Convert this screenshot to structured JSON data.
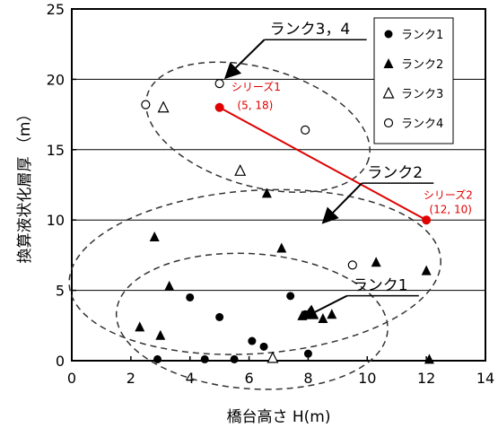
{
  "chart_data": {
    "type": "scatter",
    "xlabel": "橋台高さ H(m)",
    "ylabel": "換算液状化層厚 （m）",
    "xlim": [
      0,
      14
    ],
    "ylim": [
      0,
      25
    ],
    "xticks": [
      "0",
      "2",
      "4",
      "6",
      "8",
      "10",
      "12",
      "14"
    ],
    "yticks": [
      "0",
      "5",
      "10",
      "15",
      "20",
      "25"
    ],
    "grid": "horizontal",
    "legend_position": "top-right",
    "series": [
      {
        "name": "ランク1",
        "marker": "filled-circle",
        "points": [
          [
            2.9,
            0.1
          ],
          [
            4.0,
            4.5
          ],
          [
            4.5,
            0.1
          ],
          [
            5.0,
            3.1
          ],
          [
            5.5,
            0.1
          ],
          [
            6.1,
            1.4
          ],
          [
            6.5,
            1.0
          ],
          [
            7.4,
            4.6
          ],
          [
            7.9,
            3.3
          ],
          [
            8.0,
            0.5
          ]
        ]
      },
      {
        "name": "ランク2",
        "marker": "filled-triangle",
        "points": [
          [
            2.3,
            2.4
          ],
          [
            2.8,
            8.8
          ],
          [
            3.0,
            1.8
          ],
          [
            3.3,
            5.3
          ],
          [
            6.6,
            11.9
          ],
          [
            7.1,
            8.0
          ],
          [
            7.8,
            3.2
          ],
          [
            8.5,
            3.0
          ],
          [
            8.8,
            3.3
          ],
          [
            10.3,
            7.0
          ],
          [
            12.0,
            6.4
          ],
          [
            12.1,
            0.1
          ]
        ]
      },
      {
        "name": "ランク3",
        "marker": "open-triangle",
        "points": [
          [
            3.1,
            18.0
          ],
          [
            5.7,
            13.5
          ],
          [
            6.8,
            0.2
          ]
        ]
      },
      {
        "name": "ランク4",
        "marker": "open-circle",
        "points": [
          [
            2.5,
            18.2
          ],
          [
            5.0,
            19.7
          ],
          [
            7.9,
            16.4
          ],
          [
            9.5,
            6.8
          ]
        ]
      },
      {
        "name": "シリーズ2",
        "marker": "red-line",
        "points": [
          [
            5,
            18
          ],
          [
            12,
            10
          ]
        ]
      }
    ],
    "annotations": [
      {
        "text": "ランク3，4",
        "x": 6.7,
        "y": 23.2,
        "arrow_to": [
          5.2,
          20.1
        ]
      },
      {
        "text": "ランク2",
        "x": 10.0,
        "y": 13.0,
        "arrow_to": [
          8.5,
          9.8
        ]
      },
      {
        "text": "ランク1",
        "x": 9.5,
        "y": 5.0,
        "arrow_to": [
          7.8,
          3.0
        ]
      },
      {
        "text": "シリーズ1",
        "x": 5.4,
        "y": 19.2,
        "color": "#e00000"
      },
      {
        "text": "(5, 18)",
        "x": 5.6,
        "y": 17.9,
        "color": "#e00000"
      },
      {
        "text": "シリーズ2",
        "x": 11.9,
        "y": 11.5,
        "color": "#e00000"
      },
      {
        "text": "(12, 10)",
        "x": 12.1,
        "y": 10.5,
        "color": "#e00000"
      }
    ],
    "ellipses": [
      {
        "group": "ランク3，4",
        "cx": 6.3,
        "cy": 16.6,
        "rx": 3.9,
        "ry": 4.2,
        "angle_deg": 16
      },
      {
        "group": "ランク2",
        "cx": 6.2,
        "cy": 6.3,
        "rx": 6.3,
        "ry": 5.8,
        "angle_deg": -4
      },
      {
        "group": "ランク1",
        "cx": 6.1,
        "cy": 2.8,
        "rx": 4.6,
        "ry": 4.8,
        "angle_deg": 4
      }
    ]
  },
  "colors": {
    "points": "#000000",
    "highlight": "#e00000",
    "grid": "#000000"
  }
}
